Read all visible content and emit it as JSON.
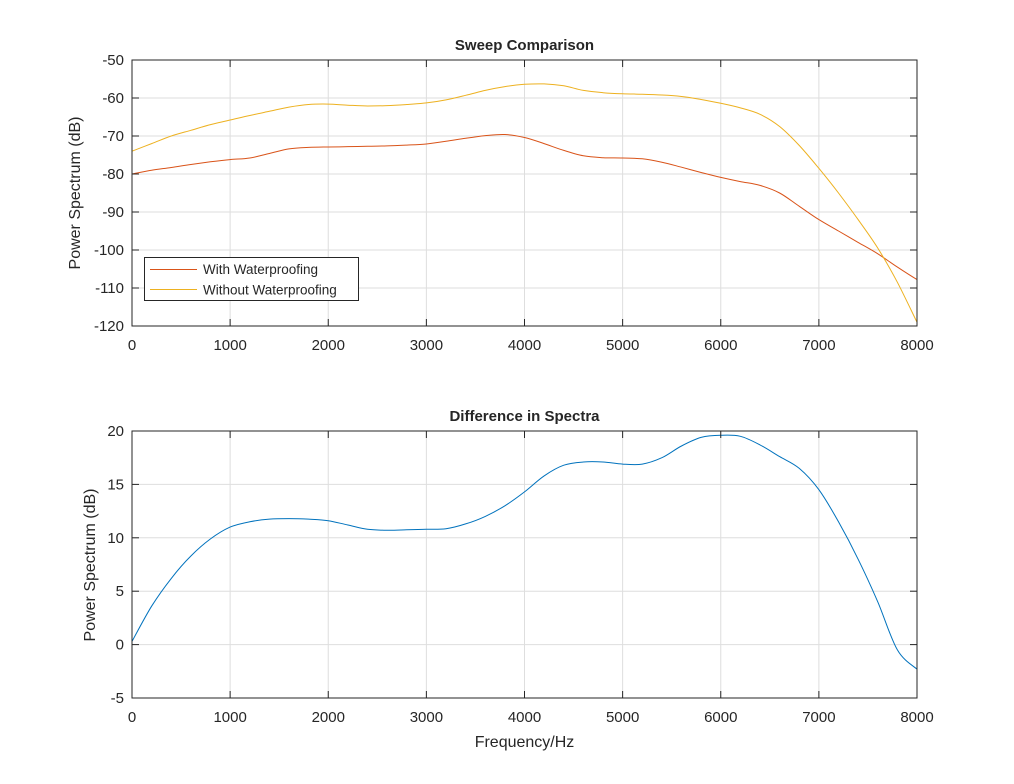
{
  "chart_data": [
    {
      "type": "line",
      "title": "Sweep Comparison",
      "xlabel": "",
      "ylabel": "Power Spectrum (dB)",
      "xlim": [
        0,
        8000
      ],
      "ylim": [
        -120,
        -50
      ],
      "xticks": [
        0,
        1000,
        2000,
        3000,
        4000,
        5000,
        6000,
        7000,
        8000
      ],
      "yticks": [
        -120,
        -110,
        -100,
        -90,
        -80,
        -70,
        -60,
        -50
      ],
      "grid": true,
      "legend_placement": "bottom-left",
      "series": [
        {
          "name": "With Waterproofing",
          "color": "#D95319",
          "x": [
            0,
            200,
            400,
            600,
            800,
            1000,
            1200,
            1400,
            1600,
            1800,
            2000,
            2200,
            2400,
            2600,
            2800,
            3000,
            3200,
            3400,
            3600,
            3800,
            4000,
            4200,
            4400,
            4600,
            4800,
            5000,
            5200,
            5400,
            5600,
            5800,
            6000,
            6200,
            6400,
            6600,
            6800,
            7000,
            7200,
            7400,
            7600,
            7800,
            8000
          ],
          "y": [
            -80,
            -79,
            -78.3,
            -77.5,
            -76.8,
            -76.2,
            -75.8,
            -74.6,
            -73.4,
            -73,
            -72.9,
            -72.8,
            -72.7,
            -72.6,
            -72.4,
            -72.1,
            -71.4,
            -70.6,
            -69.9,
            -69.6,
            -70.4,
            -72,
            -73.8,
            -75.2,
            -75.7,
            -75.8,
            -76,
            -76.9,
            -78.2,
            -79.6,
            -80.9,
            -82,
            -83,
            -85,
            -88.5,
            -92,
            -95,
            -98,
            -101,
            -104.5,
            -107.8
          ]
        },
        {
          "name": "Without Waterproofing",
          "color": "#EDB120",
          "x": [
            0,
            200,
            400,
            600,
            800,
            1000,
            1200,
            1400,
            1600,
            1800,
            2000,
            2200,
            2400,
            2600,
            2800,
            3000,
            3200,
            3400,
            3600,
            3800,
            4000,
            4200,
            4400,
            4600,
            4800,
            5000,
            5200,
            5400,
            5600,
            5800,
            6000,
            6200,
            6400,
            6600,
            6800,
            7000,
            7200,
            7400,
            7600,
            7800,
            8000
          ],
          "y": [
            -74,
            -72,
            -70,
            -68.5,
            -67,
            -65.8,
            -64.6,
            -63.5,
            -62.4,
            -61.7,
            -61.6,
            -61.9,
            -62.1,
            -62,
            -61.7,
            -61.3,
            -60.5,
            -59.3,
            -58,
            -57,
            -56.4,
            -56.3,
            -56.8,
            -58,
            -58.6,
            -58.9,
            -59,
            -59.2,
            -59.6,
            -60.4,
            -61.4,
            -62.6,
            -64.3,
            -67.5,
            -72.5,
            -78.5,
            -85,
            -92,
            -99.5,
            -108.5,
            -119
          ]
        }
      ]
    },
    {
      "type": "line",
      "title": "Difference in Spectra",
      "xlabel": "Frequency/Hz",
      "ylabel": "Power Spectrum (dB)",
      "xlim": [
        0,
        8000
      ],
      "ylim": [
        -5,
        20
      ],
      "xticks": [
        0,
        1000,
        2000,
        3000,
        4000,
        5000,
        6000,
        7000,
        8000
      ],
      "yticks": [
        -5,
        0,
        5,
        10,
        15,
        20
      ],
      "grid": true,
      "series": [
        {
          "color": "#0072BD",
          "x": [
            0,
            200,
            400,
            600,
            800,
            1000,
            1200,
            1400,
            1600,
            1800,
            2000,
            2200,
            2400,
            2600,
            2800,
            3000,
            3200,
            3400,
            3600,
            3800,
            4000,
            4200,
            4400,
            4600,
            4800,
            5000,
            5200,
            5400,
            5600,
            5800,
            6000,
            6200,
            6400,
            6600,
            6800,
            7000,
            7200,
            7400,
            7600,
            7800,
            8000
          ],
          "y": [
            0.3,
            3.6,
            6.2,
            8.3,
            9.9,
            11,
            11.5,
            11.75,
            11.8,
            11.75,
            11.6,
            11.2,
            10.8,
            10.7,
            10.75,
            10.8,
            10.85,
            11.3,
            12,
            13,
            14.3,
            15.8,
            16.8,
            17.1,
            17.1,
            16.9,
            16.9,
            17.5,
            18.6,
            19.4,
            19.6,
            19.5,
            18.7,
            17.6,
            16.5,
            14.5,
            11.5,
            8,
            4,
            -0.5,
            -2.3
          ]
        }
      ]
    }
  ]
}
